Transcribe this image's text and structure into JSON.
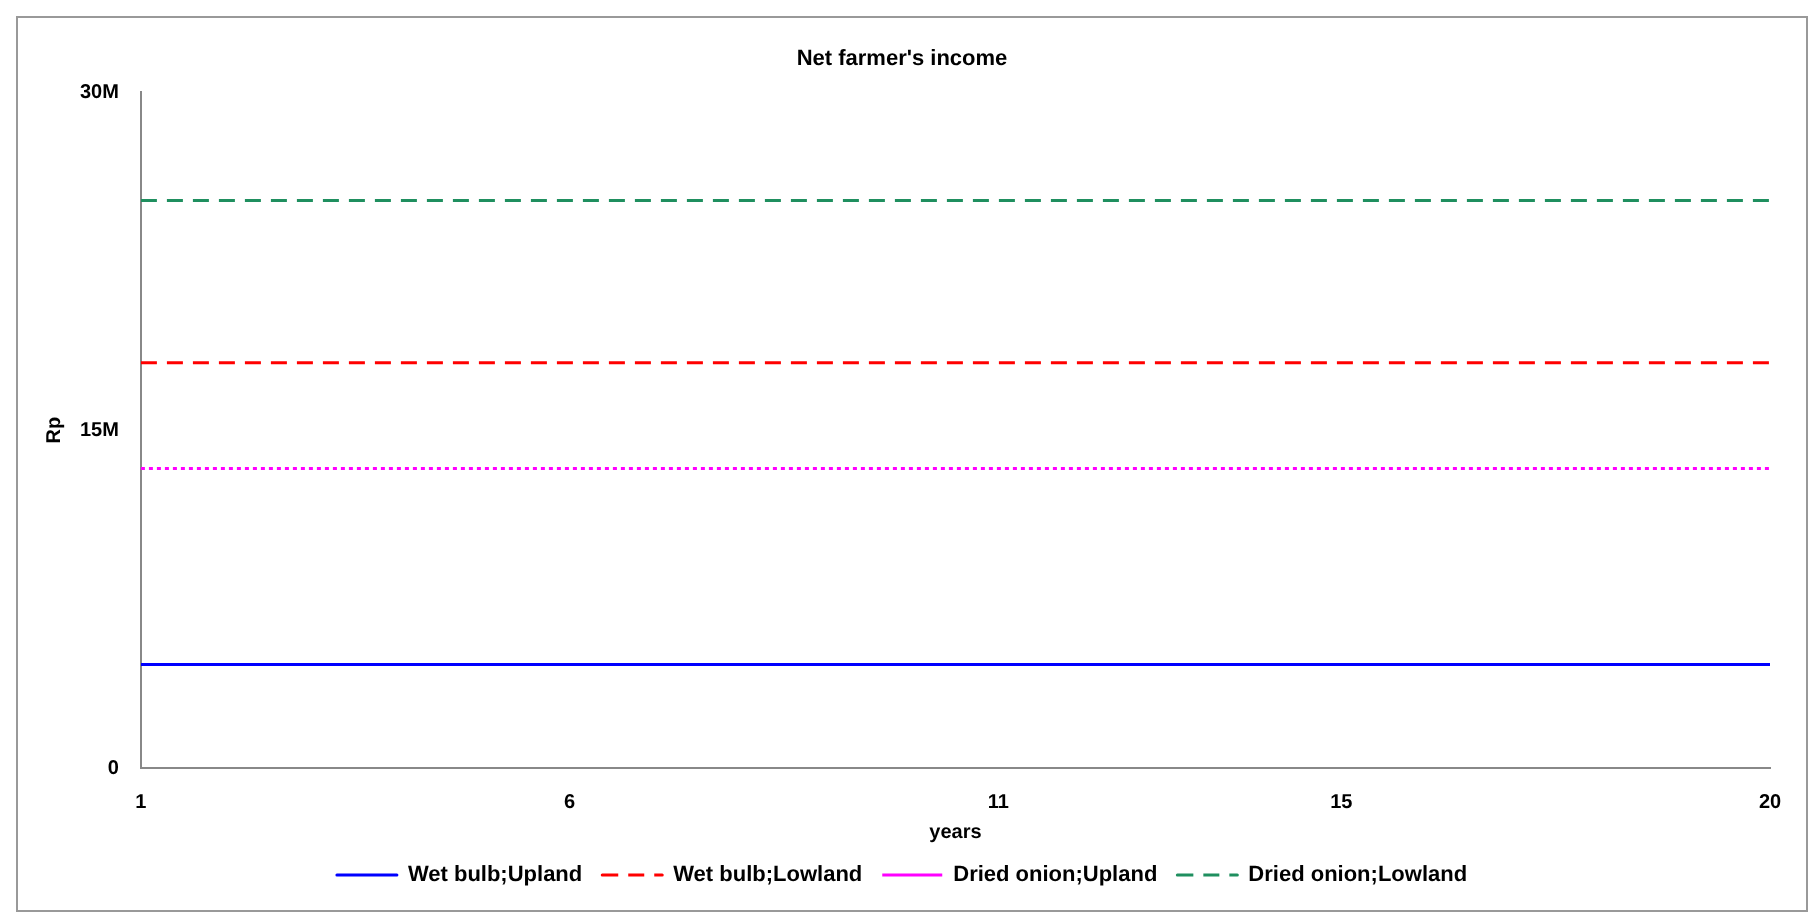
{
  "chart_data": {
    "type": "line",
    "title": "Net farmer's income",
    "xlabel": "years",
    "ylabel": "Rp",
    "x": [
      1,
      20
    ],
    "series": [
      {
        "name": "Wet bulb;Upland",
        "color": "#0000ff",
        "line_style": "solid",
        "values": [
          4600000,
          4600000
        ]
      },
      {
        "name": "Wet bulb;Lowland",
        "color": "#ff0000",
        "line_style": "dashed",
        "values": [
          18000000,
          18000000
        ]
      },
      {
        "name": "Dried onion;Upland",
        "color": "#ff00ff",
        "line_style": "dotted",
        "values": [
          13300000,
          13300000
        ]
      },
      {
        "name": "Dried onion;Lowland",
        "color": "#1f8f5f",
        "line_style": "dashed",
        "values": [
          25200000,
          25200000
        ]
      }
    ],
    "xlim": [
      1,
      20
    ],
    "xticks": [
      1,
      6,
      11,
      15,
      20
    ],
    "ylim": [
      0,
      30000000
    ],
    "yticks": [
      0,
      {
        "value": 15000000,
        "label": "15M"
      },
      {
        "value": 30000000,
        "label": "30M"
      }
    ],
    "grid": false,
    "legend": "bottom",
    "marker": "none"
  }
}
